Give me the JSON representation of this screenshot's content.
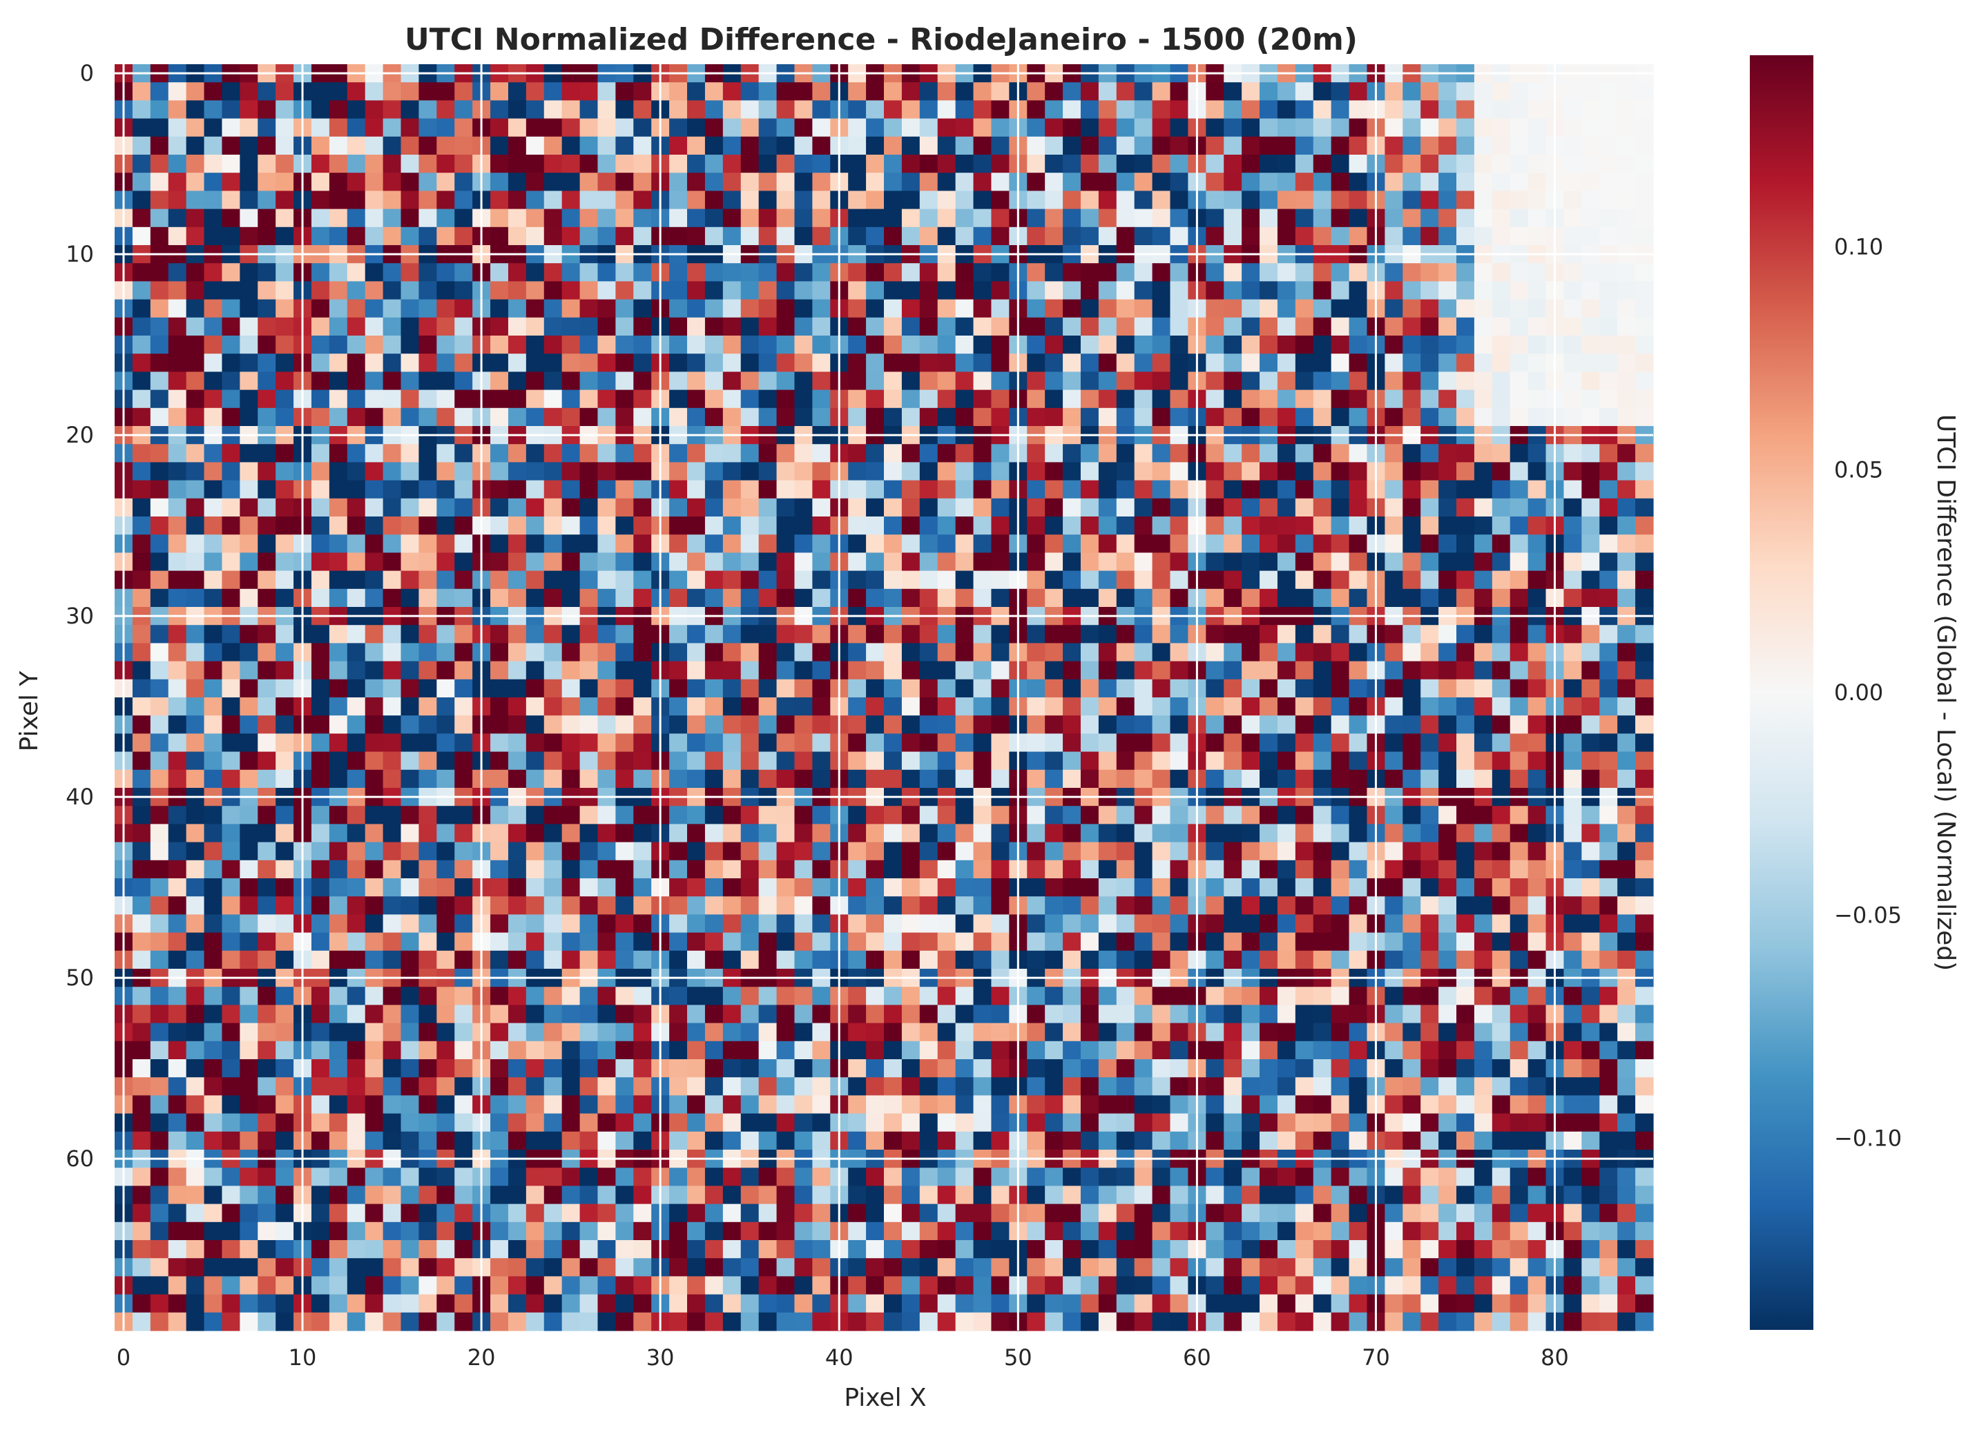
{
  "chart_data": {
    "type": "heatmap",
    "title": "UTCI Normalized Difference - RiodeJaneiro - 1500 (20m)",
    "xlabel": "Pixel X",
    "ylabel": "Pixel Y",
    "colorbar_label": "UTCI Difference (Global - Local) (Normalized)",
    "colormap": "RdBu_r",
    "grid": true,
    "grid_color": "#ffffff",
    "value_range": [
      -0.143,
      0.143
    ],
    "x_range": [
      -0.5,
      85.5
    ],
    "y_range": [
      69.5,
      -0.5
    ],
    "n_cols": 86,
    "n_rows": 70,
    "x_ticks": [
      0,
      10,
      20,
      30,
      40,
      50,
      60,
      70,
      80
    ],
    "x_tick_labels": [
      "0",
      "10",
      "20",
      "30",
      "40",
      "50",
      "60",
      "70",
      "80"
    ],
    "y_ticks": [
      0,
      10,
      20,
      30,
      40,
      50,
      60
    ],
    "y_tick_labels": [
      "0",
      "10",
      "20",
      "30",
      "40",
      "50",
      "60"
    ],
    "colorbar_ticks": [
      0.1,
      0.05,
      0.0,
      -0.05,
      -0.1
    ],
    "colorbar_tick_labels": [
      "0.10",
      "0.05",
      "0.00",
      "−0.05",
      "−0.10"
    ],
    "seed": 1500,
    "value_note": "Dense 86x70 grid of normalized UTCI differences with near-random high-contrast variation; the upper-right region (x>70, y<25) is near zero."
  }
}
